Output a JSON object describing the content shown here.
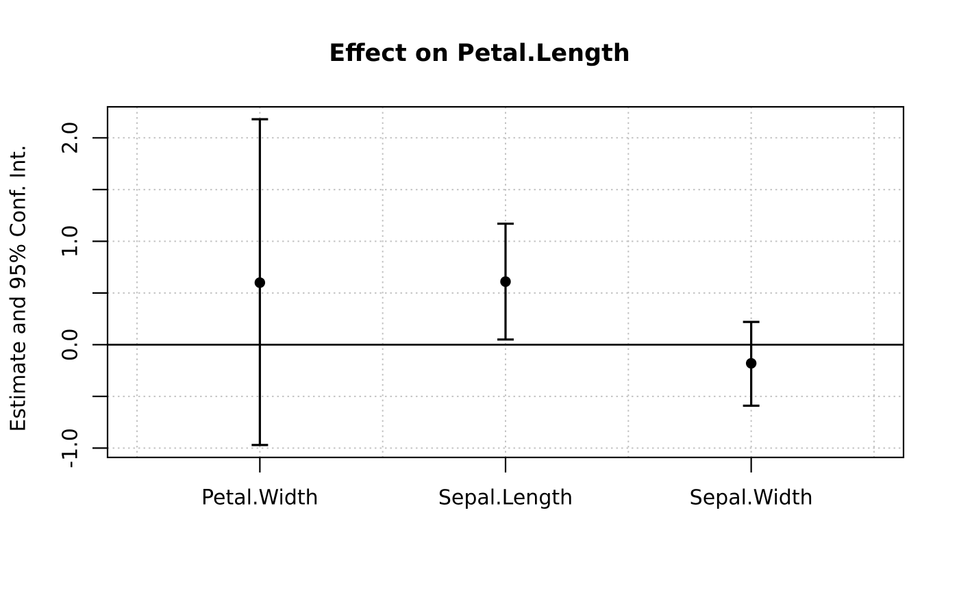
{
  "chart_data": {
    "type": "scatter",
    "subtype": "coefficient-plot-with-error-bars",
    "title": "Effect on Petal.Length",
    "xlabel": "",
    "ylabel": "Estimate and 95% Conf. Int.",
    "categories": [
      "Petal.Width",
      "Sepal.Length",
      "Sepal.Width"
    ],
    "series": [
      {
        "name": "Estimate and 95% Conf. Int.",
        "values": [
          0.6,
          0.61,
          -0.18
        ],
        "ci_lower": [
          -0.97,
          0.05,
          -0.59
        ],
        "ci_upper": [
          2.18,
          1.17,
          0.22
        ]
      }
    ],
    "y_ticks": {
      "values": [
        -1.0,
        -0.5,
        0.0,
        0.5,
        1.0,
        1.5,
        2.0
      ],
      "labeled": [
        {
          "value": -1.0,
          "label": "-1.0"
        },
        {
          "value": 0.0,
          "label": "0.0"
        },
        {
          "value": 1.0,
          "label": "1.0"
        },
        {
          "value": 2.0,
          "label": "2.0"
        }
      ]
    },
    "ylim": [
      -1.09,
      2.3
    ],
    "xlim": [
      0.38,
      3.62
    ],
    "x_positions": [
      1,
      2,
      3
    ],
    "x_gridlines": [
      0.5,
      1.0,
      1.5,
      2.0,
      2.5,
      3.0,
      3.5
    ],
    "reference_line_y": 0,
    "grid": {
      "on": true,
      "style": "dotted",
      "color": "#c3c3c3"
    },
    "legend": {
      "shown": false
    },
    "colors": {
      "text": "#000000",
      "line": "#000000",
      "marker": "#000000",
      "background": "#ffffff"
    }
  }
}
